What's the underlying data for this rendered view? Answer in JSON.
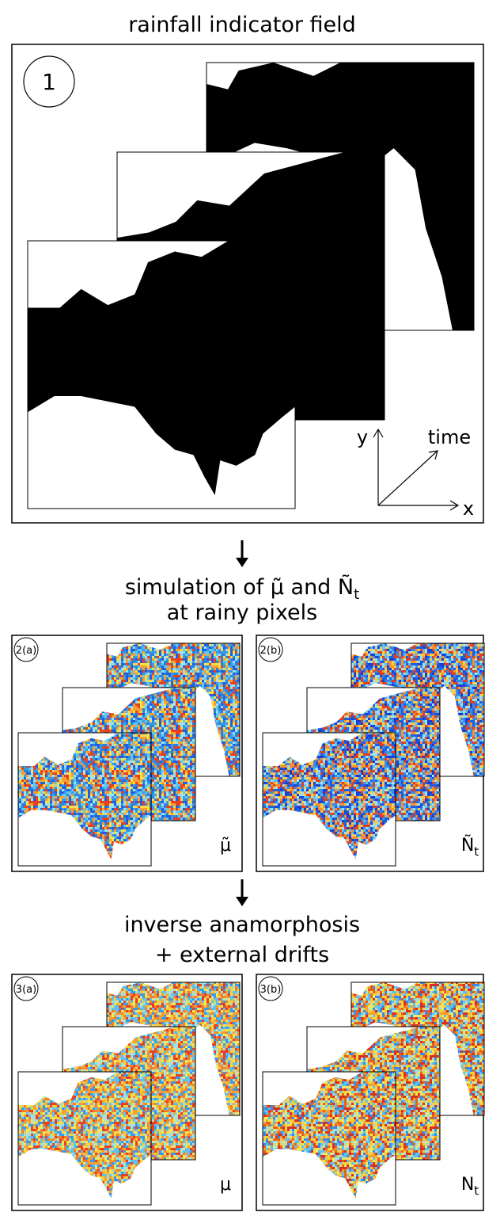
{
  "title": "rainfall indicator field",
  "panel_1": {
    "label": "1",
    "axis_y": "y",
    "axis_time": "time",
    "axis_x": "x"
  },
  "step_2": {
    "heading": {
      "text": "simulation of μ̃ and Ñ",
      "subscript": "t",
      "line2": "at rainy pixels"
    },
    "panels": [
      {
        "label": "2(a)",
        "variable": "μ̃"
      },
      {
        "label": "2(b)",
        "variable": "Ñ",
        "subscript": "t"
      }
    ]
  },
  "step_3": {
    "heading": [
      "inverse anamorphosis",
      "+ external drifts"
    ],
    "panels": [
      {
        "label": "3(a)",
        "variable": "μ"
      },
      {
        "label": "3(b)",
        "variable": "N",
        "subscript": "t"
      }
    ]
  }
}
